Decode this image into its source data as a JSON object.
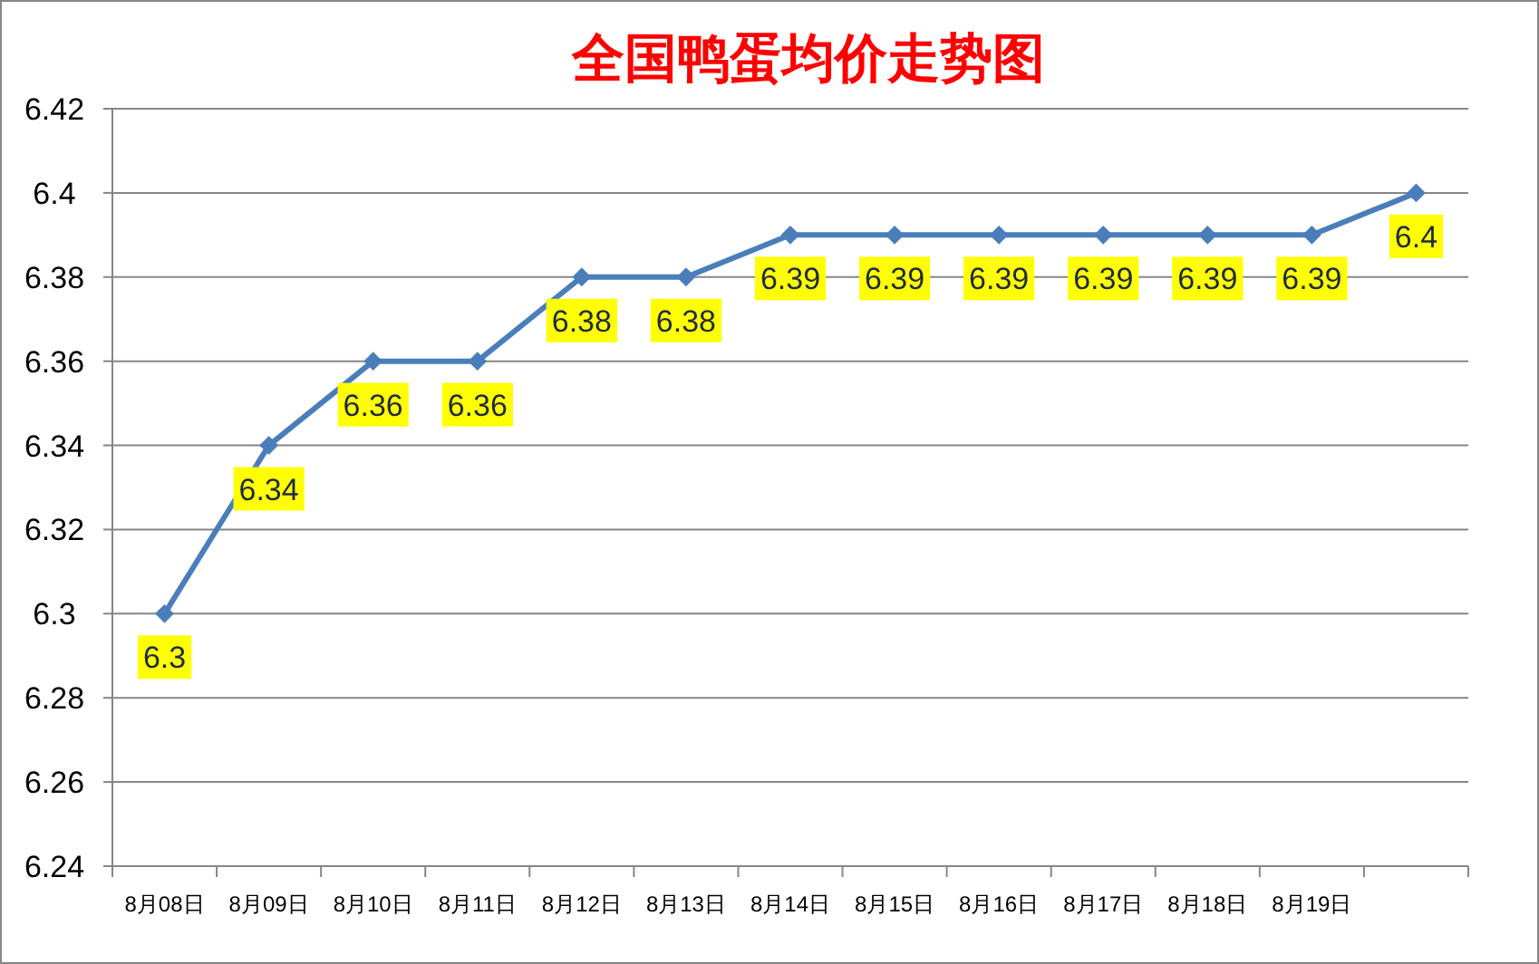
{
  "chart_data": {
    "type": "line",
    "title": "全国鸭蛋均价走势图",
    "categories": [
      "8月08日",
      "8月09日",
      "8月10日",
      "8月11日",
      "8月12日",
      "8月13日",
      "8月14日",
      "8月15日",
      "8月16日",
      "8月17日",
      "8月18日",
      "8月19日",
      null
    ],
    "series": [
      {
        "color": "#4a7ebb",
        "values": [
          6.3,
          6.34,
          6.36,
          6.36,
          6.38,
          6.38,
          6.39,
          6.39,
          6.39,
          6.39,
          6.39,
          6.39,
          6.4
        ]
      }
    ],
    "ylim": [
      6.24,
      6.42
    ],
    "yticks": [
      6.24,
      6.26,
      6.28,
      6.3,
      6.32,
      6.34,
      6.36,
      6.38,
      6.4,
      6.42
    ],
    "grid": "y",
    "marker": "diamond",
    "data_labels": true
  }
}
